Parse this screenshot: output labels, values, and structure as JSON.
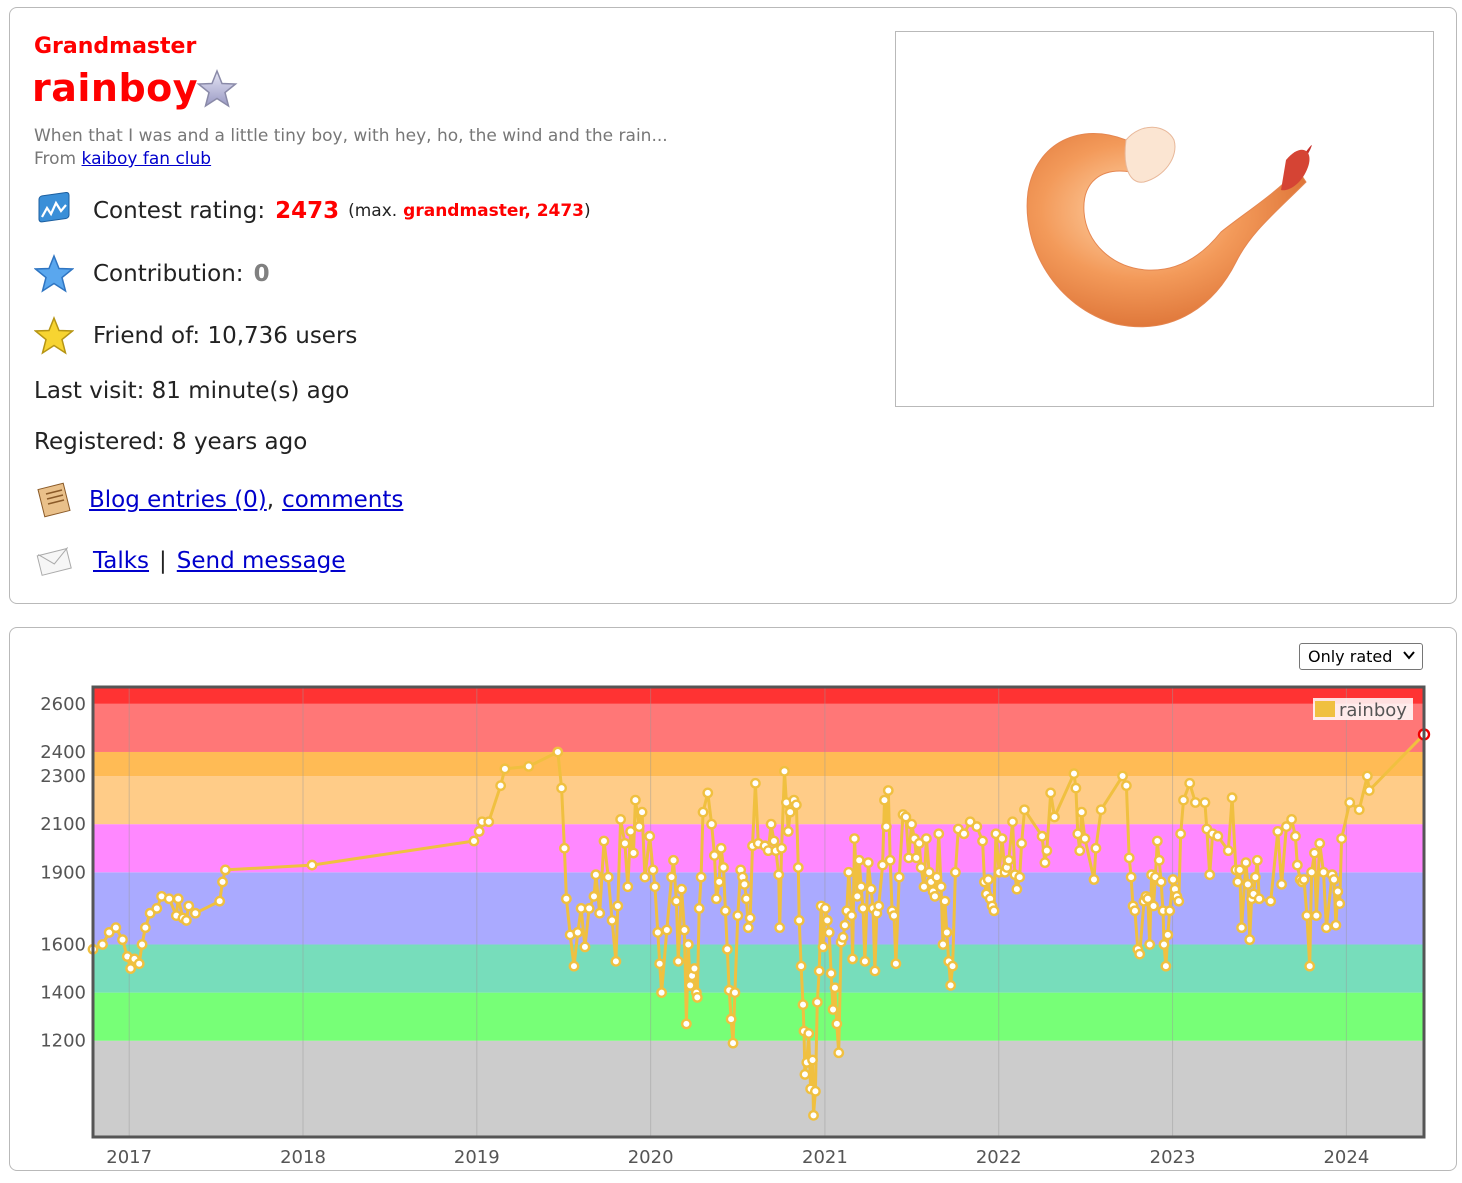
{
  "profile": {
    "rank": "Grandmaster",
    "handle": "rainboy",
    "bio": "When that I was and a little tiny boy, with hey, ho, the wind and the rain...",
    "from_prefix": "From",
    "from_org": "kaiboy fan club",
    "rating_label": "Contest rating:",
    "rating_value": "2473",
    "max_open": "(max.",
    "max_rank_value": "grandmaster, 2473",
    "max_close": ")",
    "contribution_label": "Contribution:",
    "contribution_value": "0",
    "friend_text": "Friend of: 10,736 users",
    "last_visit_text": "Last visit: 81 minute(s) ago",
    "registered_text": "Registered: 8 years ago",
    "blog_link": "Blog entries (0)",
    "comma": ",",
    "comments_link": "comments",
    "talks_link": "Talks",
    "pipe": "|",
    "send_message_link": "Send message",
    "icons": [
      "star-outline-icon",
      "rating-graph-icon",
      "blue-star-icon",
      "gold-star-icon",
      "blog-icon",
      "envelope-icon"
    ]
  },
  "filter": {
    "selected": "Only rated"
  },
  "chart_data": {
    "type": "line",
    "x_ticks": [
      "2017",
      "2018",
      "2019",
      "2020",
      "2021",
      "2022",
      "2023",
      "2024"
    ],
    "y_ticks": [
      1200,
      1400,
      1600,
      1900,
      2100,
      2300,
      2400,
      2600
    ],
    "y_range": [
      800,
      2670
    ],
    "x_range": [
      "2016-10-17",
      "2024-06-12"
    ],
    "legend": "rainboy",
    "series_color": "#f0c040",
    "bands": [
      {
        "from": 800,
        "to": 1200,
        "color": "#cccccc"
      },
      {
        "from": 1200,
        "to": 1400,
        "color": "#77ff77"
      },
      {
        "from": 1400,
        "to": 1600,
        "color": "#77ddbb"
      },
      {
        "from": 1600,
        "to": 1900,
        "color": "#aaaaff"
      },
      {
        "from": 1900,
        "to": 2100,
        "color": "#ff88ff"
      },
      {
        "from": 2100,
        "to": 2300,
        "color": "#ffcc88"
      },
      {
        "from": 2300,
        "to": 2400,
        "color": "#ffbb55"
      },
      {
        "from": 2400,
        "to": 2600,
        "color": "#ff7777"
      },
      {
        "from": 2600,
        "to": 2670,
        "color": "#ff3333"
      }
    ],
    "points": [
      [
        "2016-10-17",
        1580
      ],
      [
        "2016-11-06",
        1600
      ],
      [
        "2016-11-20",
        1650
      ],
      [
        "2016-12-04",
        1670
      ],
      [
        "2016-12-18",
        1620
      ],
      [
        "2016-12-28",
        1550
      ],
      [
        "2017-01-04",
        1500
      ],
      [
        "2017-01-12",
        1540
      ],
      [
        "2017-01-22",
        1520
      ],
      [
        "2017-01-28",
        1600
      ],
      [
        "2017-02-04",
        1670
      ],
      [
        "2017-02-14",
        1730
      ],
      [
        "2017-02-28",
        1750
      ],
      [
        "2017-03-10",
        1800
      ],
      [
        "2017-03-26",
        1790
      ],
      [
        "2017-04-10",
        1720
      ],
      [
        "2017-04-14",
        1790
      ],
      [
        "2017-04-24",
        1710
      ],
      [
        "2017-05-01",
        1700
      ],
      [
        "2017-05-06",
        1760
      ],
      [
        "2017-05-20",
        1730
      ],
      [
        "2017-07-10",
        1780
      ],
      [
        "2017-07-16",
        1860
      ],
      [
        "2017-07-22",
        1910
      ],
      [
        "2018-01-20",
        1930
      ],
      [
        "2018-12-26",
        2030
      ],
      [
        "2019-01-06",
        2070
      ],
      [
        "2019-01-12",
        2110
      ],
      [
        "2019-01-26",
        2110
      ],
      [
        "2019-02-20",
        2260
      ],
      [
        "2019-03-01",
        2330
      ],
      [
        "2019-04-20",
        2340
      ],
      [
        "2019-06-20",
        2400
      ],
      [
        "2019-06-28",
        2250
      ],
      [
        "2019-07-04",
        2000
      ],
      [
        "2019-07-08",
        1790
      ],
      [
        "2019-07-16",
        1640
      ],
      [
        "2019-07-24",
        1510
      ],
      [
        "2019-08-01",
        1650
      ],
      [
        "2019-08-08",
        1750
      ],
      [
        "2019-08-16",
        1590
      ],
      [
        "2019-08-25",
        1750
      ],
      [
        "2019-09-04",
        1800
      ],
      [
        "2019-09-08",
        1890
      ],
      [
        "2019-09-16",
        1730
      ],
      [
        "2019-09-25",
        2030
      ],
      [
        "2019-10-04",
        1880
      ],
      [
        "2019-10-12",
        1700
      ],
      [
        "2019-10-20",
        1530
      ],
      [
        "2019-10-24",
        1760
      ],
      [
        "2019-10-30",
        2120
      ],
      [
        "2019-11-08",
        2020
      ],
      [
        "2019-11-14",
        1840
      ],
      [
        "2019-11-20",
        2070
      ],
      [
        "2019-11-26",
        1980
      ],
      [
        "2019-11-30",
        2200
      ],
      [
        "2019-12-08",
        2090
      ],
      [
        "2019-12-14",
        2150
      ],
      [
        "2019-12-20",
        1880
      ],
      [
        "2019-12-30",
        2050
      ],
      [
        "2020-01-06",
        1910
      ],
      [
        "2020-01-10",
        1840
      ],
      [
        "2020-01-16",
        1650
      ],
      [
        "2020-01-20",
        1520
      ],
      [
        "2020-01-24",
        1400
      ],
      [
        "2020-02-04",
        1660
      ],
      [
        "2020-02-14",
        1880
      ],
      [
        "2020-02-18",
        1950
      ],
      [
        "2020-02-24",
        1780
      ],
      [
        "2020-02-28",
        1530
      ],
      [
        "2020-03-06",
        1830
      ],
      [
        "2020-03-12",
        1660
      ],
      [
        "2020-03-16",
        1270
      ],
      [
        "2020-03-20",
        1600
      ],
      [
        "2020-03-24",
        1430
      ],
      [
        "2020-03-28",
        1470
      ],
      [
        "2020-04-02",
        1500
      ],
      [
        "2020-04-06",
        1400
      ],
      [
        "2020-04-08",
        1380
      ],
      [
        "2020-04-12",
        1750
      ],
      [
        "2020-04-16",
        1880
      ],
      [
        "2020-04-20",
        2150
      ],
      [
        "2020-04-30",
        2230
      ],
      [
        "2020-05-08",
        2100
      ],
      [
        "2020-05-14",
        1970
      ],
      [
        "2020-05-18",
        1790
      ],
      [
        "2020-05-24",
        1860
      ],
      [
        "2020-05-28",
        2000
      ],
      [
        "2020-06-02",
        1920
      ],
      [
        "2020-06-06",
        1740
      ],
      [
        "2020-06-10",
        1580
      ],
      [
        "2020-06-14",
        1410
      ],
      [
        "2020-06-18",
        1290
      ],
      [
        "2020-06-22",
        1190
      ],
      [
        "2020-06-26",
        1400
      ],
      [
        "2020-07-02",
        1720
      ],
      [
        "2020-07-08",
        1910
      ],
      [
        "2020-07-12",
        1880
      ],
      [
        "2020-07-16",
        1850
      ],
      [
        "2020-07-20",
        1790
      ],
      [
        "2020-07-24",
        1670
      ],
      [
        "2020-07-28",
        1710
      ],
      [
        "2020-08-02",
        2010
      ],
      [
        "2020-08-08",
        2270
      ],
      [
        "2020-08-14",
        2020
      ],
      [
        "2020-08-28",
        2010
      ],
      [
        "2020-09-04",
        1990
      ],
      [
        "2020-09-10",
        2100
      ],
      [
        "2020-09-16",
        2030
      ],
      [
        "2020-09-20",
        1990
      ],
      [
        "2020-09-26",
        1890
      ],
      [
        "2020-09-28",
        1670
      ],
      [
        "2020-10-02",
        2000
      ],
      [
        "2020-10-08",
        2320
      ],
      [
        "2020-10-12",
        2190
      ],
      [
        "2020-10-16",
        2070
      ],
      [
        "2020-10-20",
        2150
      ],
      [
        "2020-10-28",
        2200
      ],
      [
        "2020-11-02",
        2180
      ],
      [
        "2020-11-06",
        1920
      ],
      [
        "2020-11-08",
        1700
      ],
      [
        "2020-11-12",
        1510
      ],
      [
        "2020-11-16",
        1350
      ],
      [
        "2020-11-18",
        1240
      ],
      [
        "2020-11-20",
        1060
      ],
      [
        "2020-11-24",
        1110
      ],
      [
        "2020-11-28",
        1230
      ],
      [
        "2020-12-02",
        1000
      ],
      [
        "2020-12-06",
        1120
      ],
      [
        "2020-12-08",
        890
      ],
      [
        "2020-12-12",
        990
      ],
      [
        "2020-12-16",
        1360
      ],
      [
        "2020-12-20",
        1490
      ],
      [
        "2020-12-24",
        1760
      ],
      [
        "2020-12-28",
        1590
      ],
      [
        "2021-01-02",
        1750
      ],
      [
        "2021-01-06",
        1700
      ],
      [
        "2021-01-10",
        1650
      ],
      [
        "2021-01-14",
        1480
      ],
      [
        "2021-01-18",
        1330
      ],
      [
        "2021-01-22",
        1420
      ],
      [
        "2021-01-26",
        1270
      ],
      [
        "2021-01-30",
        1150
      ],
      [
        "2021-02-04",
        1610
      ],
      [
        "2021-02-08",
        1630
      ],
      [
        "2021-02-12",
        1680
      ],
      [
        "2021-02-16",
        1740
      ],
      [
        "2021-02-20",
        1900
      ],
      [
        "2021-02-26",
        1720
      ],
      [
        "2021-02-28",
        1540
      ],
      [
        "2021-03-04",
        2040
      ],
      [
        "2021-03-10",
        1800
      ],
      [
        "2021-03-14",
        1950
      ],
      [
        "2021-03-18",
        1840
      ],
      [
        "2021-03-22",
        1750
      ],
      [
        "2021-03-26",
        1530
      ],
      [
        "2021-04-02",
        1940
      ],
      [
        "2021-04-08",
        1830
      ],
      [
        "2021-04-12",
        1750
      ],
      [
        "2021-04-16",
        1490
      ],
      [
        "2021-04-20",
        1730
      ],
      [
        "2021-04-24",
        1760
      ],
      [
        "2021-05-02",
        1930
      ],
      [
        "2021-05-06",
        2200
      ],
      [
        "2021-05-10",
        2090
      ],
      [
        "2021-05-14",
        2240
      ],
      [
        "2021-05-18",
        1950
      ],
      [
        "2021-05-22",
        1740
      ],
      [
        "2021-05-26",
        1720
      ],
      [
        "2021-05-30",
        1520
      ],
      [
        "2021-06-06",
        1880
      ],
      [
        "2021-06-14",
        2140
      ],
      [
        "2021-06-20",
        2130
      ],
      [
        "2021-06-26",
        1960
      ],
      [
        "2021-07-02",
        2100
      ],
      [
        "2021-07-08",
        2040
      ],
      [
        "2021-07-12",
        1960
      ],
      [
        "2021-07-18",
        2020
      ],
      [
        "2021-07-22",
        1920
      ],
      [
        "2021-07-28",
        1840
      ],
      [
        "2021-08-02",
        2040
      ],
      [
        "2021-08-08",
        1900
      ],
      [
        "2021-08-12",
        1860
      ],
      [
        "2021-08-16",
        1820
      ],
      [
        "2021-08-20",
        1800
      ],
      [
        "2021-08-24",
        1880
      ],
      [
        "2021-08-28",
        2060
      ],
      [
        "2021-09-02",
        1840
      ],
      [
        "2021-09-06",
        1600
      ],
      [
        "2021-09-10",
        1780
      ],
      [
        "2021-09-14",
        1650
      ],
      [
        "2021-09-18",
        1530
      ],
      [
        "2021-09-22",
        1430
      ],
      [
        "2021-09-26",
        1510
      ],
      [
        "2021-10-02",
        1900
      ],
      [
        "2021-10-08",
        2080
      ],
      [
        "2021-10-20",
        2060
      ],
      [
        "2021-11-02",
        2110
      ],
      [
        "2021-11-16",
        2090
      ],
      [
        "2021-11-28",
        2030
      ],
      [
        "2021-12-02",
        1860
      ],
      [
        "2021-12-06",
        1810
      ],
      [
        "2021-12-10",
        1870
      ],
      [
        "2021-12-14",
        1790
      ],
      [
        "2021-12-18",
        1760
      ],
      [
        "2021-12-22",
        1740
      ],
      [
        "2021-12-26",
        2060
      ],
      [
        "2022-01-02",
        1900
      ],
      [
        "2022-01-08",
        2040
      ],
      [
        "2022-01-14",
        1900
      ],
      [
        "2022-01-18",
        1920
      ],
      [
        "2022-01-22",
        1950
      ],
      [
        "2022-01-30",
        2110
      ],
      [
        "2022-02-04",
        1890
      ],
      [
        "2022-02-08",
        1830
      ],
      [
        "2022-02-14",
        1880
      ],
      [
        "2022-02-18",
        2020
      ],
      [
        "2022-02-24",
        2160
      ],
      [
        "2022-04-02",
        2050
      ],
      [
        "2022-04-08",
        1940
      ],
      [
        "2022-04-12",
        1990
      ],
      [
        "2022-04-20",
        2230
      ],
      [
        "2022-04-28",
        2130
      ],
      [
        "2022-06-08",
        2310
      ],
      [
        "2022-06-12",
        2250
      ],
      [
        "2022-06-16",
        2060
      ],
      [
        "2022-06-20",
        1990
      ],
      [
        "2022-06-24",
        2150
      ],
      [
        "2022-07-01",
        2040
      ],
      [
        "2022-07-20",
        1870
      ],
      [
        "2022-07-24",
        2000
      ],
      [
        "2022-08-04",
        2160
      ],
      [
        "2022-09-18",
        2300
      ],
      [
        "2022-09-26",
        2260
      ],
      [
        "2022-10-02",
        1960
      ],
      [
        "2022-10-06",
        1880
      ],
      [
        "2022-10-10",
        1760
      ],
      [
        "2022-10-14",
        1740
      ],
      [
        "2022-10-20",
        1580
      ],
      [
        "2022-10-24",
        1560
      ],
      [
        "2022-11-02",
        1780
      ],
      [
        "2022-11-06",
        1800
      ],
      [
        "2022-11-10",
        1790
      ],
      [
        "2022-11-14",
        1600
      ],
      [
        "2022-11-18",
        1890
      ],
      [
        "2022-11-22",
        1760
      ],
      [
        "2022-11-26",
        1880
      ],
      [
        "2022-11-30",
        2030
      ],
      [
        "2022-12-04",
        1950
      ],
      [
        "2022-12-08",
        1860
      ],
      [
        "2022-12-12",
        1740
      ],
      [
        "2022-12-14",
        1600
      ],
      [
        "2022-12-18",
        1510
      ],
      [
        "2022-12-22",
        1640
      ],
      [
        "2022-12-26",
        1740
      ],
      [
        "2023-01-02",
        1870
      ],
      [
        "2023-01-06",
        1830
      ],
      [
        "2023-01-10",
        1800
      ],
      [
        "2023-01-14",
        1780
      ],
      [
        "2023-01-18",
        2060
      ],
      [
        "2023-01-24",
        2200
      ],
      [
        "2023-02-06",
        2270
      ],
      [
        "2023-02-18",
        2190
      ],
      [
        "2023-03-10",
        2190
      ],
      [
        "2023-03-14",
        2080
      ],
      [
        "2023-03-20",
        1890
      ],
      [
        "2023-03-26",
        2060
      ],
      [
        "2023-04-06",
        2050
      ],
      [
        "2023-04-28",
        1990
      ],
      [
        "2023-05-06",
        2210
      ],
      [
        "2023-05-14",
        1910
      ],
      [
        "2023-05-18",
        1860
      ],
      [
        "2023-05-22",
        1910
      ],
      [
        "2023-05-26",
        1670
      ],
      [
        "2023-06-04",
        1940
      ],
      [
        "2023-06-08",
        1850
      ],
      [
        "2023-06-12",
        1620
      ],
      [
        "2023-06-16",
        1790
      ],
      [
        "2023-06-20",
        1810
      ],
      [
        "2023-06-24",
        1880
      ],
      [
        "2023-06-28",
        1950
      ],
      [
        "2023-07-02",
        1790
      ],
      [
        "2023-07-26",
        1780
      ],
      [
        "2023-08-10",
        2070
      ],
      [
        "2023-08-18",
        1850
      ],
      [
        "2023-08-28",
        2090
      ],
      [
        "2023-09-08",
        2120
      ],
      [
        "2023-09-16",
        2050
      ],
      [
        "2023-09-20",
        1930
      ],
      [
        "2023-09-26",
        1870
      ],
      [
        "2023-09-30",
        1860
      ],
      [
        "2023-10-04",
        1870
      ],
      [
        "2023-10-10",
        1720
      ],
      [
        "2023-10-16",
        1510
      ],
      [
        "2023-10-20",
        1900
      ],
      [
        "2023-10-26",
        1980
      ],
      [
        "2023-10-30",
        1720
      ],
      [
        "2023-11-06",
        2020
      ],
      [
        "2023-11-14",
        1900
      ],
      [
        "2023-11-20",
        1670
      ],
      [
        "2023-12-02",
        1890
      ],
      [
        "2023-12-06",
        1870
      ],
      [
        "2023-12-10",
        1680
      ],
      [
        "2023-12-14",
        1820
      ],
      [
        "2023-12-18",
        1770
      ],
      [
        "2023-12-22",
        2040
      ],
      [
        "2024-01-08",
        2190
      ],
      [
        "2024-01-28",
        2160
      ],
      [
        "2024-02-14",
        2300
      ],
      [
        "2024-02-18",
        2240
      ],
      [
        "2024-06-12",
        2473
      ]
    ]
  }
}
